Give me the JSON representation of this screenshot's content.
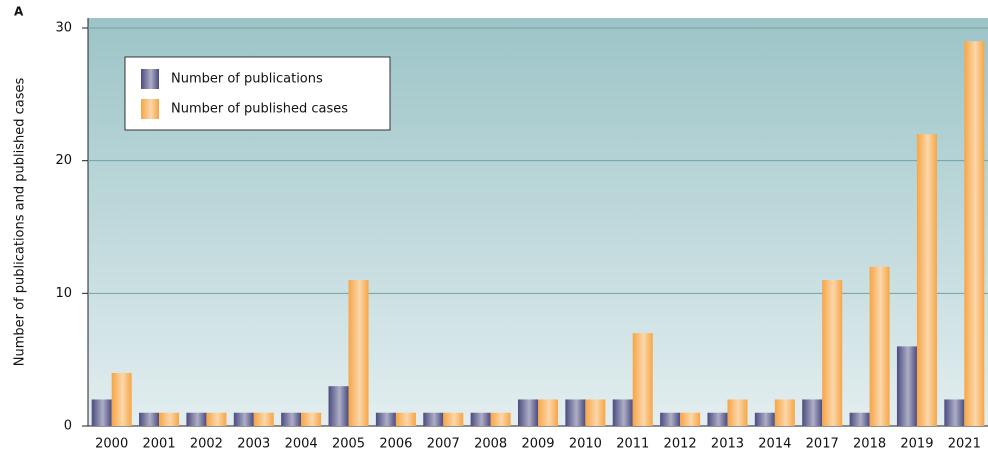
{
  "chart_data": {
    "type": "bar",
    "panel_label": "A",
    "ylabel": "Number of publications and published cases",
    "categories": [
      "2000",
      "2001",
      "2002",
      "2003",
      "2004",
      "2005",
      "2006",
      "2007",
      "2008",
      "2009",
      "2010",
      "2011",
      "2012",
      "2013",
      "2014",
      "2017",
      "2018",
      "2019",
      "2021"
    ],
    "series": [
      {
        "name": "Number of publications",
        "color": "#4b4b80",
        "values": [
          2,
          1,
          1,
          1,
          1,
          3,
          1,
          1,
          1,
          2,
          2,
          2,
          1,
          1,
          1,
          2,
          1,
          6,
          2
        ]
      },
      {
        "name": "Number of published cases",
        "color": "#f7a545",
        "values": [
          4,
          1,
          1,
          1,
          1,
          11,
          1,
          1,
          1,
          2,
          2,
          7,
          1,
          2,
          2,
          11,
          12,
          22,
          29
        ]
      }
    ],
    "ylim": [
      0,
      30
    ],
    "yticks": [
      0,
      10,
      20,
      30
    ],
    "grid": true,
    "legend": "upper left"
  }
}
